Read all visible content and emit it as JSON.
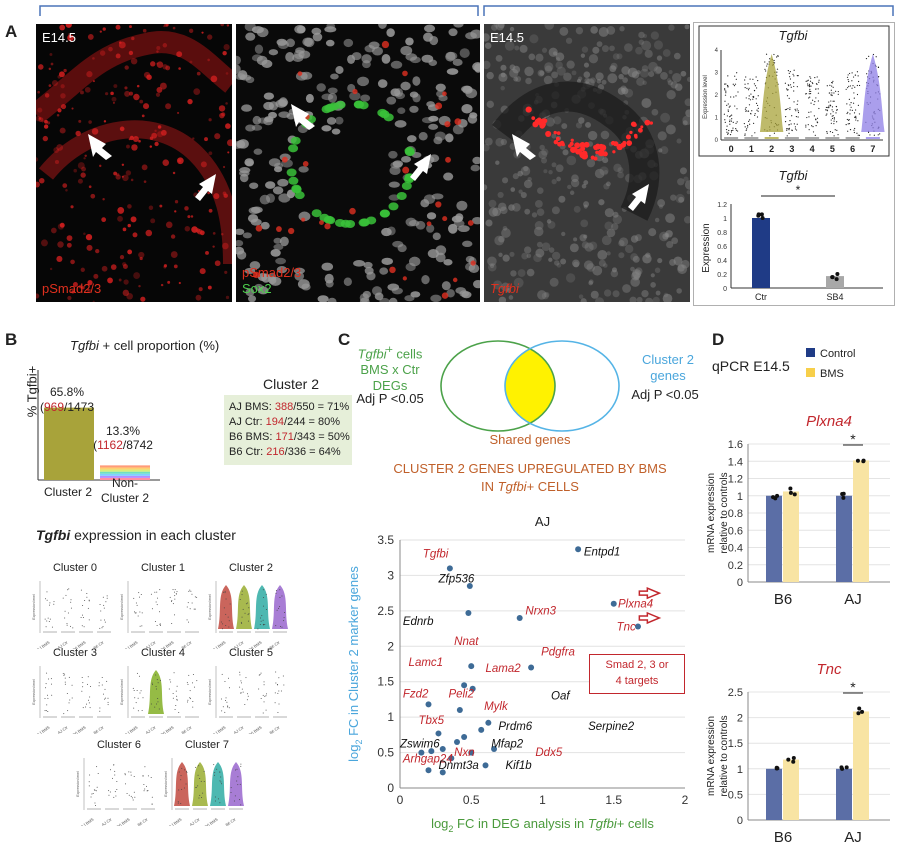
{
  "panelA": {
    "label": "A",
    "stage1": "E14.5",
    "stage2": "E14.5",
    "img1_label": "pSmad2/3",
    "img2_label1": "pSmad2/3",
    "img2_label2": "Sox2",
    "img3_label": "Tgfbi",
    "violin": {
      "title": "Tgfbi",
      "ylabel": "Expression level",
      "clusters": [
        "0",
        "1",
        "2",
        "3",
        "4",
        "5",
        "6",
        "7"
      ],
      "yticks": [
        "0",
        "1",
        "2",
        "3",
        "4"
      ],
      "colors": [
        "#8b8b8b",
        "#8b8b8b",
        "#a8a33a",
        "#8b8b8b",
        "#8b8b8b",
        "#8b8b8b",
        "#8b8b8b",
        "#8d7de6"
      ]
    },
    "bar": {
      "title": "Tgfbi",
      "ylabel": "Expression",
      "categories": [
        "Ctr",
        "SB4"
      ],
      "values": [
        1.0,
        0.17
      ],
      "yticks": [
        "0",
        "0.2",
        "0.4",
        "0.6",
        "0.8",
        "1",
        "1.2"
      ],
      "significance": "*",
      "colors": [
        "#1f3b86",
        "#a8a8a8"
      ]
    }
  },
  "panelB": {
    "label": "B",
    "title_gene": "Tgfbi",
    "title_rest": " + cell proportion (%)",
    "ylabel": "% Tgfbi+",
    "bars": [
      {
        "pct": "65.8%",
        "num": "969",
        "den": "/1473",
        "value": 65.8,
        "label1": "Cluster 2",
        "label2": ""
      },
      {
        "pct": "13.3%",
        "num": "1162",
        "den": "/8742",
        "value": 13.3,
        "label1": "Non-",
        "label2": "Cluster 2"
      }
    ],
    "cluster_box": {
      "title": "Cluster 2",
      "rows": [
        {
          "pre": "AJ BMS: ",
          "num": "388",
          "rest": "/550 = 71%"
        },
        {
          "pre": "AJ Ctr: ",
          "num": "194",
          "rest": "/244 = 80%"
        },
        {
          "pre": "B6 BMS: ",
          "num": "171",
          "rest": "/343 = 50%"
        },
        {
          "pre": "B6 Ctr: ",
          "num": "216",
          "rest": "/336 = 64%"
        }
      ]
    },
    "expr_title_gene": "Tgfbi",
    "expr_title_rest": "  expression in each cluster",
    "clusters": [
      "Cluster 0",
      "Cluster 1",
      "Cluster 2",
      "Cluster 3",
      "Cluster 4",
      "Cluster 5",
      "Cluster 6",
      "Cluster 7"
    ],
    "groups": [
      "AJ BMS",
      "AJ Ctr",
      "B6 BMS",
      "B6 Ctr"
    ],
    "mini_ylabel": "Expression level"
  },
  "panelC": {
    "label": "C",
    "venn_left1": "Tgfbi",
    "venn_left1_sup": "+",
    "venn_left1_rest": " cells",
    "venn_left2": "BMS x Ctr",
    "venn_left3": "DEGs",
    "venn_right1": "Cluster 2",
    "venn_right2": "genes",
    "adj_left": "Adj P <0.05",
    "adj_right": "Adj P <0.05",
    "shared": "Shared genes",
    "heading1": "CLUSTER 2 GENES UPREGULATED BY BMS",
    "heading2_pre": "IN ",
    "heading2_gene": "Tgfbi",
    "heading2_post": "+ CELLS",
    "scatter_title": "AJ",
    "box_text1": "Smad 2, 3 or",
    "box_text2": "4 targets",
    "xlabel": "log2 FC in DEG analysis in Tgfbi+ cells",
    "ylabel": "log2 FC in Cluster 2 marker genes"
  },
  "chart_data": [
    {
      "type": "scatter",
      "title": "AJ",
      "xlabel": "log2 FC in DEG analysis in Tgfbi+ cells",
      "ylabel": "log2 FC in Cluster 2 marker genes",
      "xlim": [
        0,
        2
      ],
      "ylim": [
        0,
        3.5
      ],
      "xticks": [
        "0",
        "0.5",
        "1",
        "1.5",
        "2"
      ],
      "yticks": [
        "0",
        "0.5",
        "1",
        "1.5",
        "2",
        "2.5",
        "3",
        "3.5"
      ],
      "points": [
        {
          "x": 1.25,
          "y": 3.37
        },
        {
          "x": 0.35,
          "y": 3.1
        },
        {
          "x": 0.49,
          "y": 2.85
        },
        {
          "x": 0.48,
          "y": 2.47
        },
        {
          "x": 0.84,
          "y": 2.4
        },
        {
          "x": 1.5,
          "y": 2.6
        },
        {
          "x": 1.67,
          "y": 2.28
        },
        {
          "x": 0.92,
          "y": 1.7
        },
        {
          "x": 0.5,
          "y": 1.72
        },
        {
          "x": 0.45,
          "y": 1.45
        },
        {
          "x": 0.51,
          "y": 1.4
        },
        {
          "x": 0.2,
          "y": 1.18
        },
        {
          "x": 0.42,
          "y": 1.1
        },
        {
          "x": 0.62,
          "y": 0.92
        },
        {
          "x": 0.57,
          "y": 0.82
        },
        {
          "x": 0.27,
          "y": 0.77
        },
        {
          "x": 0.4,
          "y": 0.65
        },
        {
          "x": 0.45,
          "y": 0.72
        },
        {
          "x": 0.66,
          "y": 0.55
        },
        {
          "x": 0.3,
          "y": 0.55
        },
        {
          "x": 0.22,
          "y": 0.52
        },
        {
          "x": 0.15,
          "y": 0.5
        },
        {
          "x": 0.5,
          "y": 0.5
        },
        {
          "x": 0.36,
          "y": 0.42
        },
        {
          "x": 0.6,
          "y": 0.32
        },
        {
          "x": 0.2,
          "y": 0.25
        },
        {
          "x": 0.3,
          "y": 0.22
        }
      ],
      "labels": [
        {
          "text": "Entpd1",
          "x": 1.29,
          "y": 3.28,
          "red": false
        },
        {
          "text": "Tgfbi",
          "x": 0.16,
          "y": 3.25,
          "red": true
        },
        {
          "text": "Zfp536",
          "x": 0.27,
          "y": 2.9,
          "red": false
        },
        {
          "text": "Ednrb",
          "x": 0.02,
          "y": 2.3,
          "red": false
        },
        {
          "text": "Nrxn3",
          "x": 0.88,
          "y": 2.45,
          "red": true
        },
        {
          "text": "Plxna4",
          "x": 1.53,
          "y": 2.55,
          "red": true
        },
        {
          "text": "Tnc",
          "x": 1.52,
          "y": 2.22,
          "red": true
        },
        {
          "text": "Pdgfra",
          "x": 0.99,
          "y": 1.87,
          "red": true
        },
        {
          "text": "Nnat",
          "x": 0.38,
          "y": 2.02,
          "red": true
        },
        {
          "text": "Lamc1",
          "x": 0.06,
          "y": 1.72,
          "red": true
        },
        {
          "text": "Lama2",
          "x": 0.6,
          "y": 1.64,
          "red": true
        },
        {
          "text": "Fzd2",
          "x": 0.02,
          "y": 1.28,
          "red": true
        },
        {
          "text": "Peli2",
          "x": 0.34,
          "y": 1.28,
          "red": true
        },
        {
          "text": "Mylk",
          "x": 0.59,
          "y": 1.1,
          "red": true
        },
        {
          "text": "Oaf",
          "x": 1.06,
          "y": 1.25,
          "red": false
        },
        {
          "text": "Tbx5",
          "x": 0.13,
          "y": 0.9,
          "red": true
        },
        {
          "text": "Prdm6",
          "x": 0.69,
          "y": 0.82,
          "red": false
        },
        {
          "text": "Serpine2",
          "x": 1.32,
          "y": 0.82,
          "red": false
        },
        {
          "text": "Zswim6",
          "x": 0.0,
          "y": 0.57,
          "red": false
        },
        {
          "text": "Mfap2",
          "x": 0.64,
          "y": 0.57,
          "red": false
        },
        {
          "text": "Arhgap24",
          "x": 0.02,
          "y": 0.36,
          "red": true
        },
        {
          "text": "Nxn",
          "x": 0.38,
          "y": 0.45,
          "red": true
        },
        {
          "text": "Ddx5",
          "x": 0.95,
          "y": 0.45,
          "red": true
        },
        {
          "text": "Dnmt3a",
          "x": 0.27,
          "y": 0.27,
          "red": false
        },
        {
          "text": "Kif1b",
          "x": 0.74,
          "y": 0.27,
          "red": false
        }
      ]
    },
    {
      "type": "bar",
      "title": "Plxna4",
      "ylabel": "mRNA expression relative to controls",
      "categories": [
        "B6",
        "AJ"
      ],
      "series": [
        {
          "name": "Control",
          "values": [
            1.0,
            1.0
          ]
        },
        {
          "name": "BMS",
          "values": [
            1.05,
            1.41
          ]
        }
      ],
      "ylim": [
        0,
        1.6
      ],
      "yticks": [
        "0",
        "0.2",
        "0.4",
        "0.6",
        "0.8",
        "1",
        "1.2",
        "1.4",
        "1.6"
      ],
      "significance": "*"
    },
    {
      "type": "bar",
      "title": "Tnc",
      "ylabel": "mRNA expression relative to controls",
      "categories": [
        "B6",
        "AJ"
      ],
      "series": [
        {
          "name": "Control",
          "values": [
            1.0,
            1.0
          ]
        },
        {
          "name": "BMS",
          "values": [
            1.18,
            2.12
          ]
        }
      ],
      "ylim": [
        0,
        2.5
      ],
      "yticks": [
        "0",
        "0.5",
        "1",
        "1.5",
        "2",
        "2.5"
      ],
      "significance": "*"
    }
  ],
  "panelD": {
    "label": "D",
    "subtitle": "qPCR E14.5",
    "legend": [
      {
        "name": "Control",
        "color": "#1f3b86"
      },
      {
        "name": "BMS",
        "color": "#f7cf4a"
      }
    ],
    "bar_colors": [
      "#5b6ea6",
      "#f8e4a3"
    ]
  }
}
